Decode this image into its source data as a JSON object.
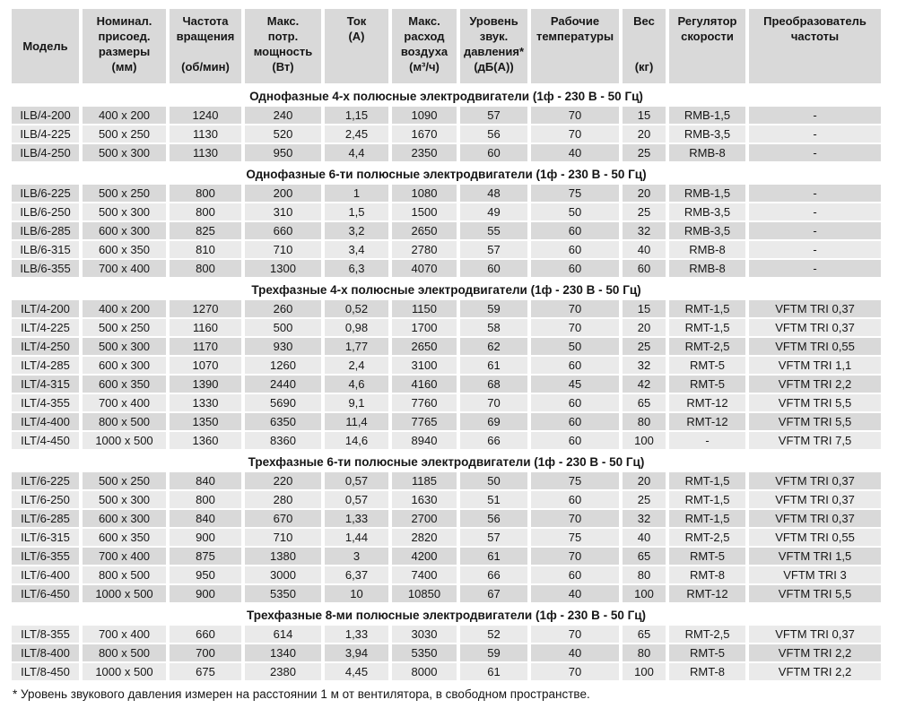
{
  "colors": {
    "cell_dark": "#d9d9d9",
    "cell_light": "#eaeaea",
    "text": "#161616",
    "background": "#ffffff"
  },
  "table": {
    "columns": [
      {
        "label": "Модель"
      },
      {
        "label": "Номинал.\nприсоед.\nразмеры\n(мм)"
      },
      {
        "label": "Частота\nвращения\n\n(об/мин)"
      },
      {
        "label": "Макс.\nпотр.\nмощность\n(Вт)"
      },
      {
        "label": "Ток\n(А)"
      },
      {
        "label": "Макс.\nрасход\nвоздуха\n(м³/ч)"
      },
      {
        "label": "Уровень\nзвук.\nдавления*\n(дБ(А))"
      },
      {
        "label": "Рабочие\nтемпературы"
      },
      {
        "label": "Вес\n\n\n(кг)"
      },
      {
        "label": "Регулятор\nскорости"
      },
      {
        "label": "Преобразователь\nчастоты"
      }
    ],
    "sections": [
      {
        "title": "Однофазные 4-х полюсные электродвигатели (1ф - 230 В - 50 Гц)",
        "first_row_shade": "dark",
        "rows": [
          [
            "ILB/4-200",
            "400 x 200",
            "1240",
            "240",
            "1,15",
            "1090",
            "57",
            "70",
            "15",
            "RMB-1,5",
            "-"
          ],
          [
            "ILB/4-225",
            "500 x 250",
            "1130",
            "520",
            "2,45",
            "1670",
            "56",
            "70",
            "20",
            "RMB-3,5",
            "-"
          ],
          [
            "ILB/4-250",
            "500 x 300",
            "1130",
            "950",
            "4,4",
            "2350",
            "60",
            "40",
            "25",
            "RMB-8",
            "-"
          ]
        ]
      },
      {
        "title": "Однофазные 6-ти полюсные электродвигатели (1ф - 230 В - 50 Гц)",
        "first_row_shade": "dark",
        "rows": [
          [
            "ILB/6-225",
            "500 x 250",
            "800",
            "200",
            "1",
            "1080",
            "48",
            "75",
            "20",
            "RMB-1,5",
            "-"
          ],
          [
            "ILB/6-250",
            "500 x 300",
            "800",
            "310",
            "1,5",
            "1500",
            "49",
            "50",
            "25",
            "RMB-3,5",
            "-"
          ],
          [
            "ILB/6-285",
            "600 x 300",
            "825",
            "660",
            "3,2",
            "2650",
            "55",
            "60",
            "32",
            "RMB-3,5",
            "-"
          ],
          [
            "ILB/6-315",
            "600 x 350",
            "810",
            "710",
            "3,4",
            "2780",
            "57",
            "60",
            "40",
            "RMB-8",
            "-"
          ],
          [
            "ILB/6-355",
            "700 x 400",
            "800",
            "1300",
            "6,3",
            "4070",
            "60",
            "60",
            "60",
            "RMB-8",
            "-"
          ]
        ]
      },
      {
        "title": "Трехфазные 4-х полюсные электродвигатели (1ф - 230 В - 50 Гц)",
        "first_row_shade": "dark",
        "rows": [
          [
            "ILT/4-200",
            "400 x 200",
            "1270",
            "260",
            "0,52",
            "1150",
            "59",
            "70",
            "15",
            "RMT-1,5",
            "VFTM TRI 0,37"
          ],
          [
            "ILT/4-225",
            "500 x 250",
            "1160",
            "500",
            "0,98",
            "1700",
            "58",
            "70",
            "20",
            "RMT-1,5",
            "VFTM TRI 0,37"
          ],
          [
            "ILT/4-250",
            "500 x 300",
            "1170",
            "930",
            "1,77",
            "2650",
            "62",
            "50",
            "25",
            "RMT-2,5",
            "VFTM TRI 0,55"
          ],
          [
            "ILT/4-285",
            "600 x 300",
            "1070",
            "1260",
            "2,4",
            "3100",
            "61",
            "60",
            "32",
            "RMT-5",
            "VFTM TRI 1,1"
          ],
          [
            "ILT/4-315",
            "600 x 350",
            "1390",
            "2440",
            "4,6",
            "4160",
            "68",
            "45",
            "42",
            "RMT-5",
            "VFTM TRI 2,2"
          ],
          [
            "ILT/4-355",
            "700 x 400",
            "1330",
            "5690",
            "9,1",
            "7760",
            "70",
            "60",
            "65",
            "RMT-12",
            "VFTM TRI 5,5"
          ],
          [
            "ILT/4-400",
            "800 x 500",
            "1350",
            "6350",
            "11,4",
            "7765",
            "69",
            "60",
            "80",
            "RMT-12",
            "VFTM TRI 5,5"
          ],
          [
            "ILT/4-450",
            "1000 x 500",
            "1360",
            "8360",
            "14,6",
            "8940",
            "66",
            "60",
            "100",
            "-",
            "VFTM TRI 7,5"
          ]
        ]
      },
      {
        "title": "Трехфазные 6-ти полюсные электродвигатели (1ф - 230 В - 50 Гц)",
        "first_row_shade": "dark",
        "rows": [
          [
            "ILT/6-225",
            "500 x 250",
            "840",
            "220",
            "0,57",
            "1185",
            "50",
            "75",
            "20",
            "RMT-1,5",
            "VFTM TRI 0,37"
          ],
          [
            "ILT/6-250",
            "500 x 300",
            "800",
            "280",
            "0,57",
            "1630",
            "51",
            "60",
            "25",
            "RMT-1,5",
            "VFTM TRI 0,37"
          ],
          [
            "ILT/6-285",
            "600 x 300",
            "840",
            "670",
            "1,33",
            "2700",
            "56",
            "70",
            "32",
            "RMT-1,5",
            "VFTM TRI 0,37"
          ],
          [
            "ILT/6-315",
            "600 x 350",
            "900",
            "710",
            "1,44",
            "2820",
            "57",
            "75",
            "40",
            "RMT-2,5",
            "VFTM TRI 0,55"
          ],
          [
            "ILT/6-355",
            "700 x 400",
            "875",
            "1380",
            "3",
            "4200",
            "61",
            "70",
            "65",
            "RMT-5",
            "VFTM TRI 1,5"
          ],
          [
            "ILT/6-400",
            "800 x 500",
            "950",
            "3000",
            "6,37",
            "7400",
            "66",
            "60",
            "80",
            "RMT-8",
            "VFTM TRI 3"
          ],
          [
            "ILT/6-450",
            "1000 x 500",
            "900",
            "5350",
            "10",
            "10850",
            "67",
            "40",
            "100",
            "RMT-12",
            "VFTM TRI 5,5"
          ]
        ]
      },
      {
        "title": "Трехфазные 8-ми полюсные электродвигатели (1ф - 230 В - 50 Гц)",
        "first_row_shade": "light",
        "rows": [
          [
            "ILT/8-355",
            "700 x 400",
            "660",
            "614",
            "1,33",
            "3030",
            "52",
            "70",
            "65",
            "RMT-2,5",
            "VFTM TRI 0,37"
          ],
          [
            "ILT/8-400",
            "800 x 500",
            "700",
            "1340",
            "3,94",
            "5350",
            "59",
            "40",
            "80",
            "RMT-5",
            "VFTM TRI 2,2"
          ],
          [
            "ILT/8-450",
            "1000 x 500",
            "675",
            "2380",
            "4,45",
            "8000",
            "61",
            "70",
            "100",
            "RMT-8",
            "VFTM TRI 2,2"
          ]
        ]
      }
    ]
  },
  "footnote": "* Уровень звукового давления измерен на расстоянии 1 м от вентилятора, в свободном пространстве."
}
